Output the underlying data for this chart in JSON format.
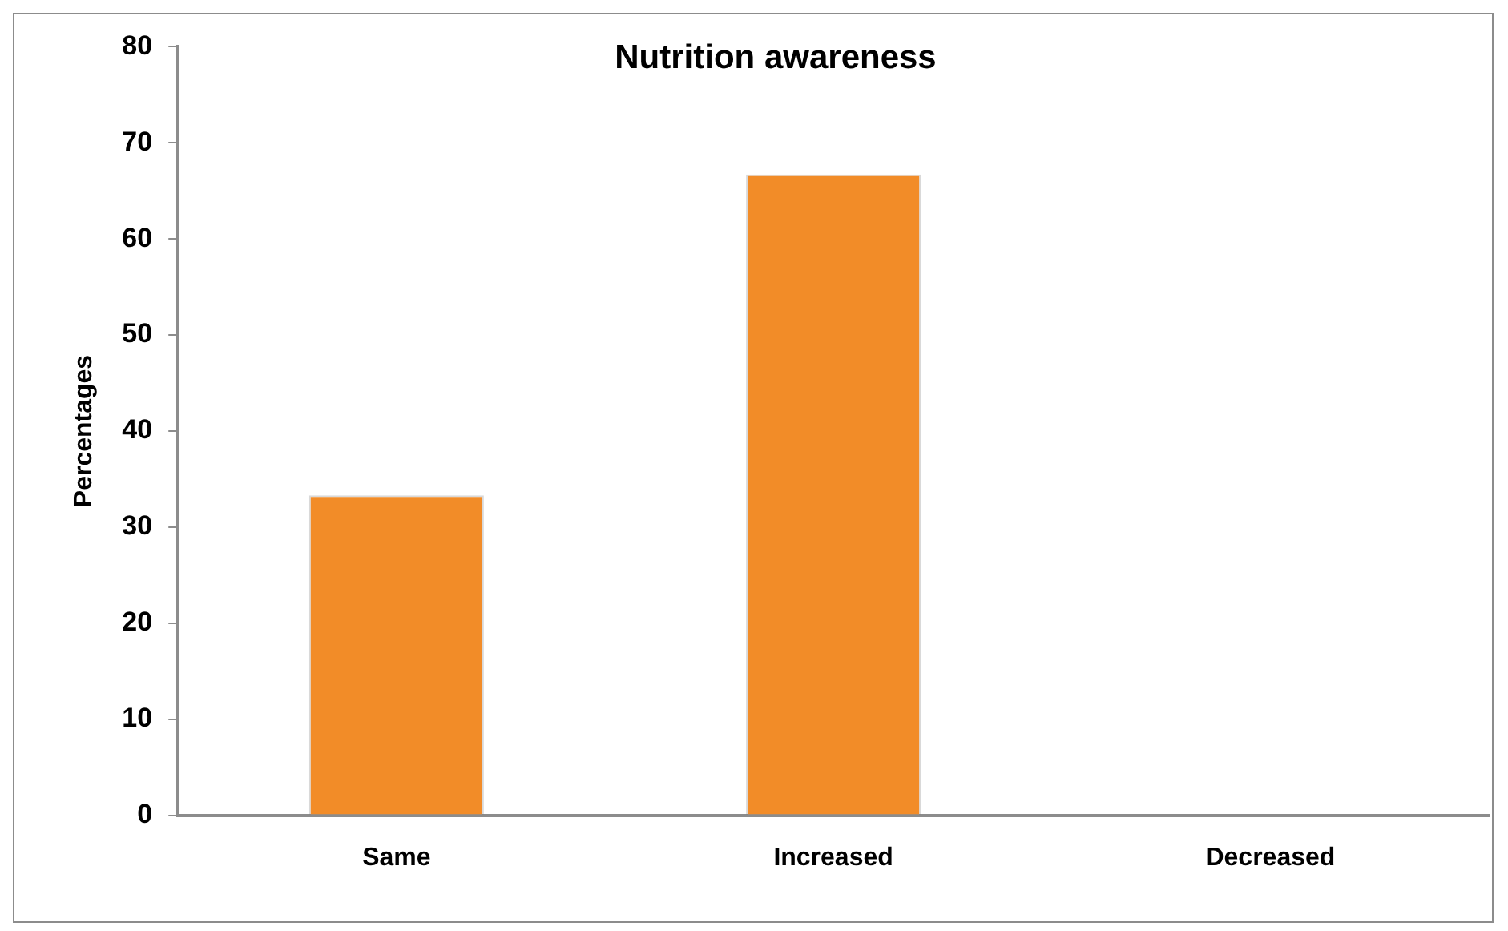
{
  "chart_data": {
    "type": "bar",
    "title": "Nutrition awareness",
    "ylabel": "Percentages",
    "categories": [
      "Same",
      "Increased",
      "Decreased"
    ],
    "values": [
      33.3,
      66.7,
      0
    ],
    "color": "#f28c28",
    "ylim": [
      0,
      80
    ],
    "yticks": [
      0,
      10,
      20,
      30,
      40,
      50,
      60,
      70,
      80
    ],
    "grid": false,
    "legend": false
  }
}
